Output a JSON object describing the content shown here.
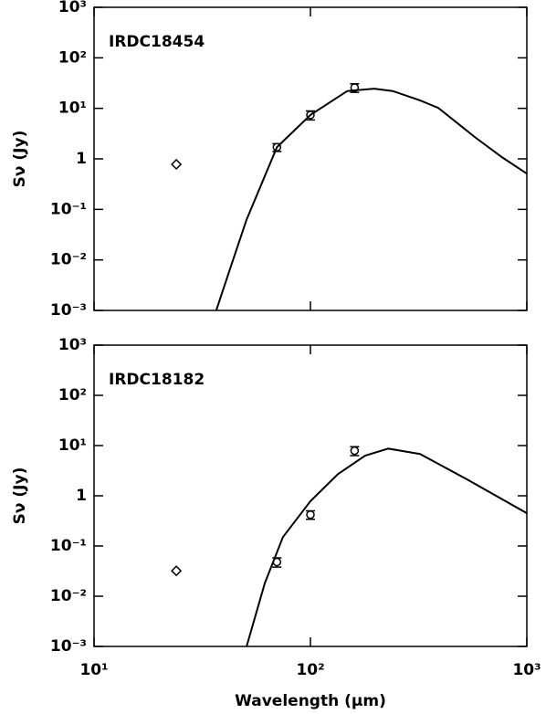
{
  "chart_data": [
    {
      "type": "scatter",
      "title": "IRDC18454",
      "ylabel": "Sν (Jy)",
      "xscale": "log",
      "yscale": "log",
      "xlim": [
        10,
        1000
      ],
      "ylim": [
        0.001,
        1000
      ],
      "xticks": [
        {
          "value": 10,
          "label": "10¹"
        },
        {
          "value": 100,
          "label": "10²"
        },
        {
          "value": 1000,
          "label": "10³"
        }
      ],
      "yticks": [
        {
          "value": 0.001,
          "label": "10⁻³"
        },
        {
          "value": 0.01,
          "label": "10⁻²"
        },
        {
          "value": 0.1,
          "label": "10⁻¹"
        },
        1,
        {
          "value": 10,
          "label": "10¹"
        },
        {
          "value": 100,
          "label": "10²"
        },
        {
          "value": 1000,
          "label": "10³"
        }
      ],
      "series": [
        {
          "type": "scatter",
          "marker": "diamond",
          "color": "#000000",
          "x": [
            24
          ],
          "values": [
            0.78
          ]
        },
        {
          "type": "scatter",
          "marker": "circle",
          "color": "#000000",
          "x": [
            70,
            100,
            160
          ],
          "values": [
            1.7,
            7.4,
            25.7
          ],
          "errors": [
            0.3,
            1.5,
            5
          ]
        },
        {
          "type": "line",
          "color": "#000000",
          "x": [
            36.7,
            41.7,
            50.7,
            70,
            100,
            148,
            197,
            240,
            321,
            390,
            575,
            770,
            1000
          ],
          "values": [
            0.001,
            0.0052,
            0.063,
            1.7,
            7.4,
            22,
            24.5,
            22,
            14.4,
            10.2,
            2.7,
            1.07,
            0.51
          ]
        }
      ]
    },
    {
      "type": "scatter",
      "title": "IRDC18182",
      "ylabel": "Sν (Jy)",
      "xlabel": "Wavelength (μm)",
      "xscale": "log",
      "yscale": "log",
      "xlim": [
        10,
        1000
      ],
      "ylim": [
        0.001,
        1000
      ],
      "xticks": [
        {
          "value": 10,
          "label": "10¹"
        },
        {
          "value": 100,
          "label": "10²"
        },
        {
          "value": 1000,
          "label": "10³"
        }
      ],
      "yticks": [
        {
          "value": 0.001,
          "label": "10⁻³"
        },
        {
          "value": 0.01,
          "label": "10⁻²"
        },
        {
          "value": 0.1,
          "label": "10⁻¹"
        },
        1,
        {
          "value": 10,
          "label": "10¹"
        },
        {
          "value": 100,
          "label": "10²"
        },
        {
          "value": 1000,
          "label": "10³"
        }
      ],
      "series": [
        {
          "type": "scatter",
          "marker": "diamond",
          "color": "#000000",
          "x": [
            24
          ],
          "values": [
            0.032
          ]
        },
        {
          "type": "scatter",
          "marker": "circle",
          "color": "#000000",
          "x": [
            70,
            100,
            160
          ],
          "values": [
            0.048,
            0.42,
            7.9
          ],
          "errors": [
            0.01,
            0.08,
            1.6
          ]
        },
        {
          "type": "line",
          "color": "#000000",
          "x": [
            50.7,
            61.5,
            74.6,
            100,
            134,
            179,
            229,
            321,
            521,
            1000
          ],
          "values": [
            0.001,
            0.018,
            0.15,
            0.78,
            2.7,
            6.3,
            8.7,
            6.8,
            2.2,
            0.45
          ]
        }
      ]
    }
  ]
}
